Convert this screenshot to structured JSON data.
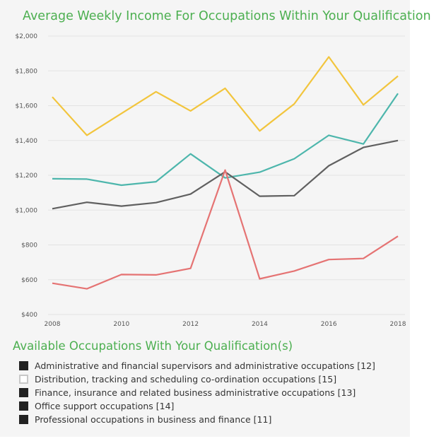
{
  "chart_data": {
    "type": "line",
    "title": "Average Weekly Income For Occupations Within Your Qualification",
    "x": [
      2008,
      2009,
      2010,
      2011,
      2012,
      2013,
      2014,
      2015,
      2016,
      2017,
      2018
    ],
    "x_tick_labels": [
      "2008",
      "2010",
      "2012",
      "2014",
      "2016",
      "2018"
    ],
    "y_tick_labels": [
      "$2,000",
      "$1,800",
      "$1,600",
      "$1,400",
      "$1,200",
      "$1,000",
      "$800",
      "$600",
      "$400"
    ],
    "ylim": [
      400,
      2000
    ],
    "grid": true,
    "series": [
      {
        "color": "#f2c53d",
        "values": [
          1650,
          1430,
          1555,
          1680,
          1570,
          1700,
          1455,
          1610,
          1880,
          1605,
          1770
        ]
      },
      {
        "color": "#4db6ac",
        "values": [
          1180,
          1178,
          1143,
          1163,
          1323,
          1185,
          1218,
          1295,
          1430,
          1380,
          1670
        ]
      },
      {
        "color": "#606060",
        "values": [
          1008,
          1045,
          1023,
          1043,
          1092,
          1220,
          1080,
          1083,
          1255,
          1360,
          1400
        ]
      },
      {
        "color": "#e57373",
        "values": [
          580,
          548,
          630,
          628,
          665,
          1230,
          605,
          650,
          716,
          722,
          850
        ]
      }
    ]
  },
  "legend": {
    "title": "Available Occupations With Your Qualification(s)",
    "items": [
      {
        "label": "Administrative and financial supervisors and administrative occupations [12]",
        "checked": true
      },
      {
        "label": "Distribution, tracking and scheduling co-ordination occupations [15]",
        "checked": false
      },
      {
        "label": "Finance, insurance and related business administrative occupations [13]",
        "checked": true
      },
      {
        "label": "Office support occupations [14]",
        "checked": true
      },
      {
        "label": "Professional occupations in business and finance [11]",
        "checked": true
      }
    ]
  }
}
